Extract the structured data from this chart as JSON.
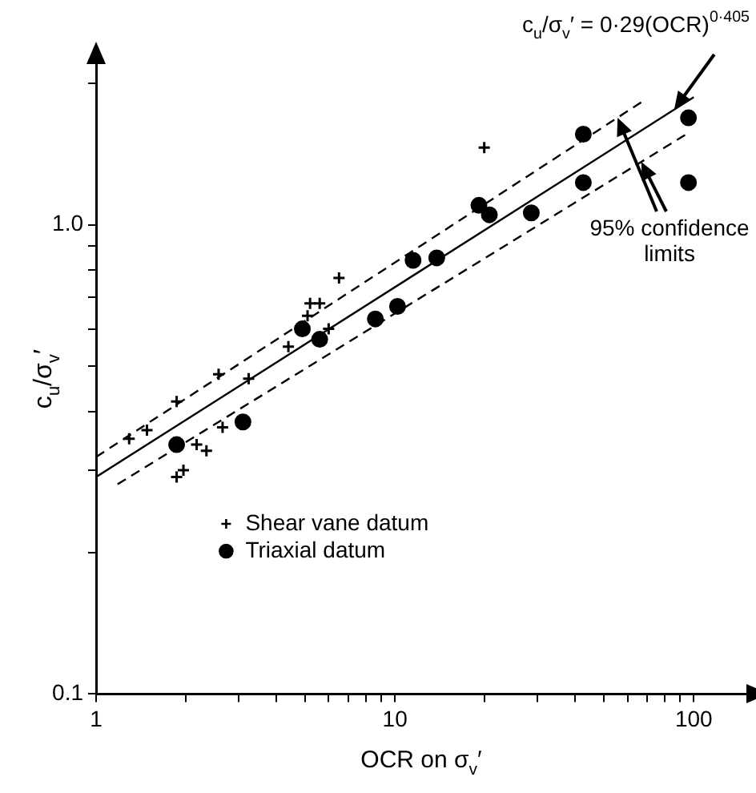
{
  "chart_data": {
    "type": "scatter",
    "xlabel": "OCR on σ$_{v}$′",
    "ylabel": "c$_{u}$/σ$_{v}$′",
    "log": "xy",
    "grid": false,
    "legend": "bottom left",
    "xlim": [
      1,
      150
    ],
    "ylim": [
      0.1,
      2.2
    ],
    "xticks": [
      1,
      {
        "value": 2,
        "label": null
      },
      {
        "value": 3,
        "label": null
      },
      {
        "value": 4,
        "label": null
      },
      {
        "value": 5,
        "label": null
      },
      {
        "value": 6,
        "label": null
      },
      {
        "value": 7,
        "label": null
      },
      {
        "value": 8,
        "label": null
      },
      {
        "value": 9,
        "label": null
      },
      10,
      {
        "value": 20,
        "label": null
      },
      {
        "value": 30,
        "label": null
      },
      {
        "value": 40,
        "label": null
      },
      {
        "value": 50,
        "label": null
      },
      {
        "value": 60,
        "label": null
      },
      {
        "value": 70,
        "label": null
      },
      {
        "value": 80,
        "label": null
      },
      {
        "value": 90,
        "label": null
      },
      100
    ],
    "yticks": [
      {
        "value": 0.1,
        "label": "0.1"
      },
      {
        "value": 0.2,
        "label": null
      },
      {
        "value": 0.3,
        "label": null
      },
      {
        "value": 0.4,
        "label": null
      },
      {
        "value": 0.5,
        "label": null
      },
      {
        "value": 0.6,
        "label": null
      },
      {
        "value": 0.7,
        "label": null
      },
      {
        "value": 0.8,
        "label": null
      },
      {
        "value": 0.9,
        "label": null
      },
      {
        "value": 1,
        "label": "1.0"
      },
      {
        "value": 2,
        "label": null
      }
    ],
    "series": [
      {
        "name": "Shear vane datum",
        "marker": "cross",
        "color": "#000000",
        "x": [
          1.29,
          1.48,
          1.86,
          2.57,
          3.24,
          2.65,
          2.17,
          2.34,
          1.86,
          1.96,
          4.4,
          5.1,
          5.2,
          5.6,
          6.0,
          6.5,
          19.9
        ],
        "values": [
          0.35,
          0.365,
          0.42,
          0.48,
          0.47,
          0.37,
          0.34,
          0.33,
          0.29,
          0.3,
          0.55,
          0.64,
          0.68,
          0.68,
          0.6,
          0.77,
          1.46
        ]
      },
      {
        "name": "Triaxial datum",
        "marker": "circle",
        "color": "#000000",
        "x": [
          96,
          96,
          42.7,
          42.7,
          19.1,
          20.7,
          28.6,
          11.5,
          13.8,
          10.2,
          8.6,
          4.9,
          5.6,
          3.1,
          1.86
        ],
        "values": [
          1.69,
          1.23,
          1.56,
          1.23,
          1.1,
          1.05,
          1.06,
          0.84,
          0.85,
          0.67,
          0.63,
          0.6,
          0.57,
          0.38,
          0.34
        ]
      },
      {
        "type": "line",
        "marker": "none",
        "line_style": "solid",
        "color": "#000000",
        "x": [
          1,
          100
        ],
        "values": [
          0.29,
          1.87
        ]
      },
      {
        "type": "line",
        "marker": "none",
        "line_style": "dashed",
        "color": "#000000",
        "x": [
          1,
          69
        ],
        "values": [
          0.32,
          1.85
        ]
      },
      {
        "type": "line",
        "marker": "none",
        "line_style": "dashed",
        "color": "#000000",
        "x": [
          1.18,
          96
        ],
        "values": [
          0.28,
          1.57
        ]
      }
    ],
    "annotations": [
      {
        "text": "c$_{u}$/σ$_{v}$′ = 0·29(OCR)$^{0·405}$",
        "x": 86,
        "y": 1.76
      },
      {
        "text": "95% confidence limits",
        "x": 55.6,
        "y": 1.69
      }
    ]
  }
}
